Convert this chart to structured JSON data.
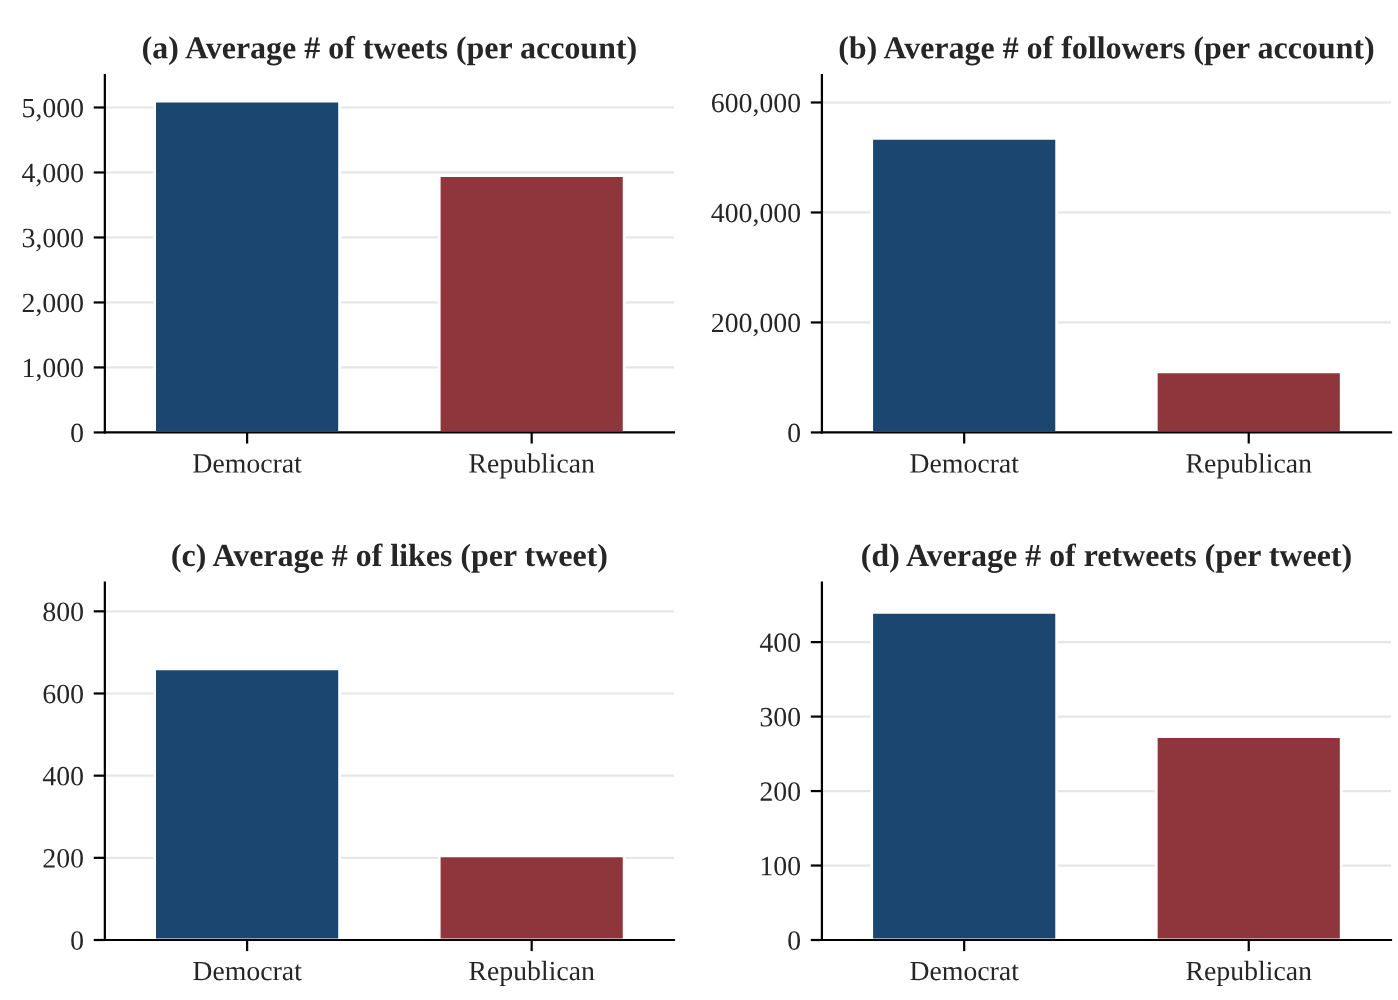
{
  "chart_data": [
    {
      "type": "bar",
      "title": "(a) Average # of tweets (per account)",
      "categories": [
        "Democrat",
        "Republican"
      ],
      "values": [
        5100,
        3950
      ],
      "colors": [
        "#1b4670",
        "#8f363c"
      ],
      "ylim": [
        0,
        5500
      ],
      "yticks": [
        {
          "value": 0,
          "label": "0"
        },
        {
          "value": 1000,
          "label": "1,000"
        },
        {
          "value": 2000,
          "label": "2,000"
        },
        {
          "value": 3000,
          "label": "3,000"
        },
        {
          "value": 4000,
          "label": "4,000"
        },
        {
          "value": 5000,
          "label": "5,000"
        }
      ],
      "grid": "y"
    },
    {
      "type": "bar",
      "title": "(b) Average # of followers (per account)",
      "categories": [
        "Democrat",
        "Republican"
      ],
      "values": [
        535000,
        110000
      ],
      "colors": [
        "#1b4670",
        "#8f363c"
      ],
      "ylim": [
        0,
        650000
      ],
      "yticks": [
        {
          "value": 0,
          "label": "0"
        },
        {
          "value": 200000,
          "label": "200,000"
        },
        {
          "value": 400000,
          "label": "400,000"
        },
        {
          "value": 600000,
          "label": "600,000"
        }
      ],
      "grid": "y"
    },
    {
      "type": "bar",
      "title": "(c) Average # of likes (per tweet)",
      "categories": [
        "Democrat",
        "Republican"
      ],
      "values": [
        660,
        205
      ],
      "colors": [
        "#1b4670",
        "#8f363c"
      ],
      "ylim": [
        0,
        870
      ],
      "yticks": [
        0,
        200,
        400,
        600,
        800
      ],
      "grid": "y"
    },
    {
      "type": "bar",
      "title": "(d) Average # of retweets (per tweet)",
      "categories": [
        "Democrat",
        "Republican"
      ],
      "values": [
        440,
        273
      ],
      "colors": [
        "#1b4670",
        "#8f363c"
      ],
      "ylim": [
        0,
        480
      ],
      "yticks": [
        0,
        100,
        200,
        300,
        400
      ],
      "grid": "y"
    }
  ]
}
